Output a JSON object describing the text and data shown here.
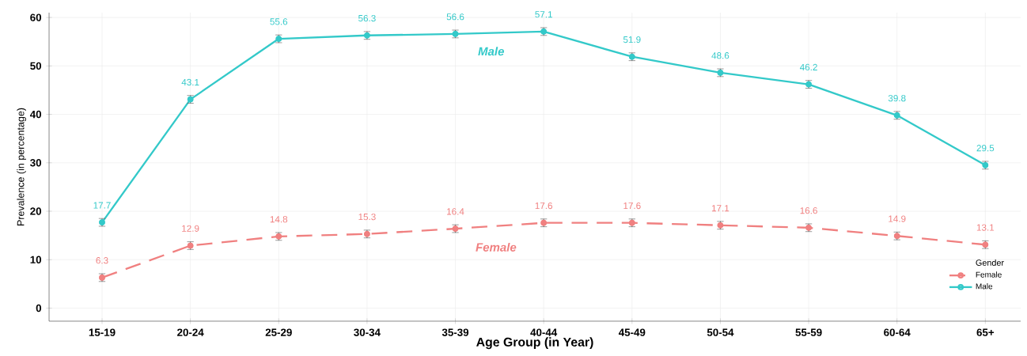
{
  "chart_data": {
    "type": "line",
    "categories": [
      "15-19",
      "20-24",
      "25-29",
      "30-34",
      "35-39",
      "40-44",
      "45-49",
      "50-54",
      "55-59",
      "60-64",
      "65+"
    ],
    "series": [
      {
        "name": "Female",
        "color": "#f08080",
        "line_style": "dashed",
        "values": [
          6.3,
          12.9,
          14.8,
          15.3,
          16.4,
          17.6,
          17.6,
          17.1,
          16.6,
          14.9,
          13.1
        ],
        "errors": [
          0.8,
          0.8,
          0.8,
          0.8,
          0.8,
          0.8,
          0.8,
          0.8,
          0.8,
          0.8,
          0.8
        ]
      },
      {
        "name": "Male",
        "color": "#33c9c9",
        "line_style": "solid",
        "values": [
          17.7,
          43.1,
          55.6,
          56.3,
          56.6,
          57.1,
          51.9,
          48.6,
          46.2,
          39.8,
          29.5
        ],
        "errors": [
          0.8,
          0.8,
          0.8,
          0.8,
          0.8,
          0.8,
          0.8,
          0.8,
          0.8,
          0.8,
          0.8
        ]
      }
    ],
    "xlabel": "Age Group (in Year)",
    "ylabel": "Prevalence (in percentage)",
    "ylim": [
      -2.7,
      61
    ],
    "yticks": [
      0,
      10,
      20,
      30,
      40,
      50,
      60
    ],
    "annotations": [
      "Male",
      "Female"
    ],
    "data_labels": true,
    "grid": true,
    "legend": "bottom right",
    "legend_title": "Gender",
    "marker": "circle"
  }
}
